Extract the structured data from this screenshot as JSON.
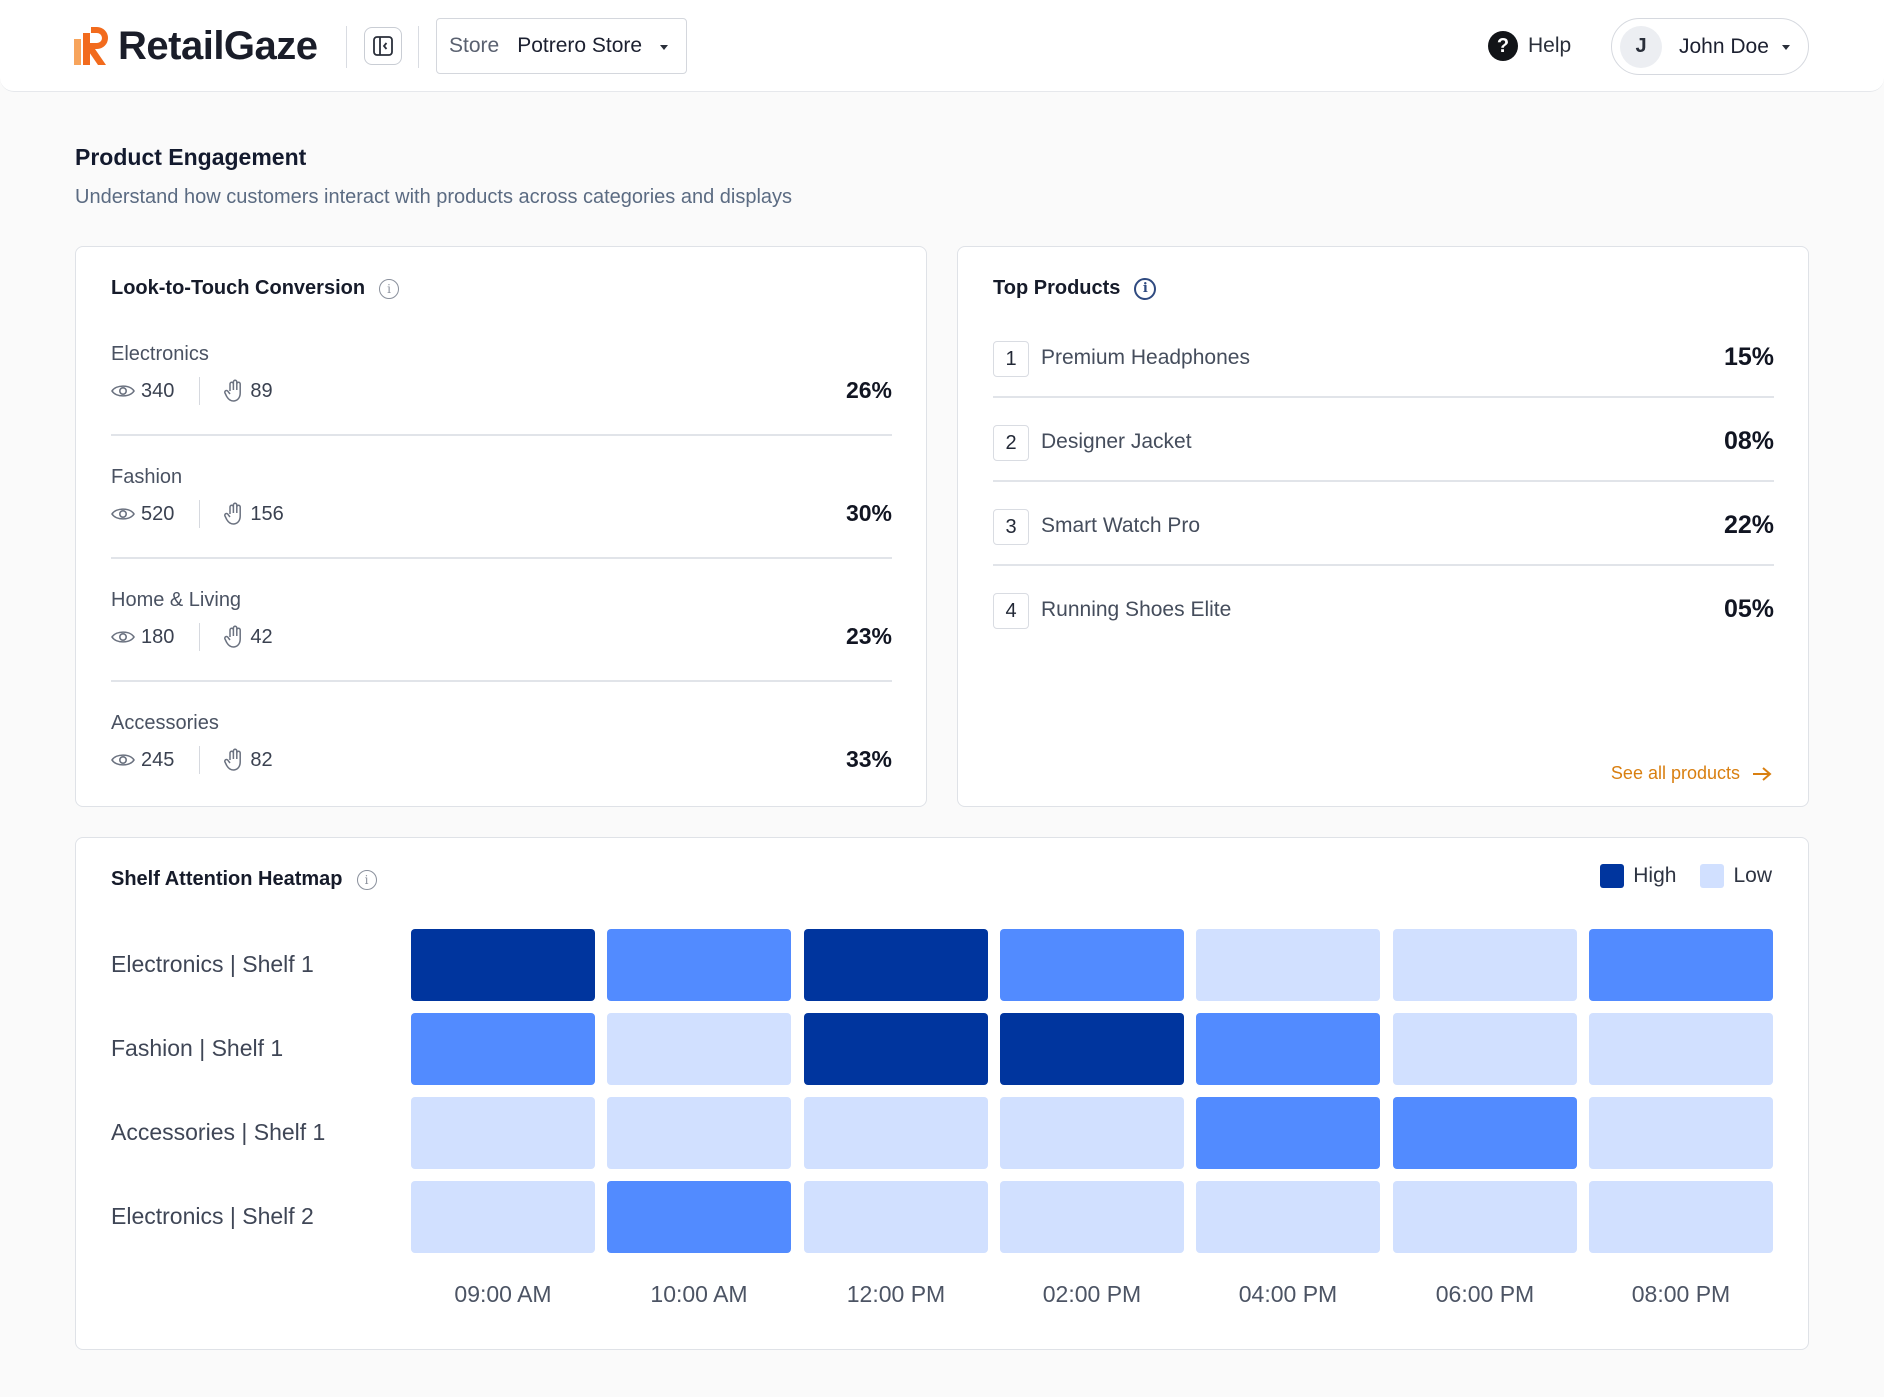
{
  "header": {
    "brand": "RetailGaze",
    "store_label": "Store",
    "store_value": "Potrero Store",
    "help_label": "Help",
    "user_initial": "J",
    "user_name": "John Doe"
  },
  "page": {
    "title": "Product Engagement",
    "subtitle": "Understand how customers interact with products across categories and displays"
  },
  "conversion": {
    "title": "Look-to-Touch Conversion",
    "rows": [
      {
        "name": "Electronics",
        "looks": "340",
        "touches": "89",
        "pct": "26%"
      },
      {
        "name": "Fashion",
        "looks": "520",
        "touches": "156",
        "pct": "30%"
      },
      {
        "name": "Home & Living",
        "looks": "180",
        "touches": "42",
        "pct": "23%"
      },
      {
        "name": "Accessories",
        "looks": "245",
        "touches": "82",
        "pct": "33%"
      }
    ]
  },
  "top_products": {
    "title": "Top Products",
    "items": [
      {
        "rank": "1",
        "name": "Premium Headphones",
        "pct": "15%"
      },
      {
        "rank": "2",
        "name": "Designer Jacket",
        "pct": "08%"
      },
      {
        "rank": "3",
        "name": "Smart Watch Pro",
        "pct": "22%"
      },
      {
        "rank": "4",
        "name": "Running Shoes Elite",
        "pct": "05%"
      }
    ],
    "see_all": "See all products"
  },
  "heatmap": {
    "title": "Shelf Attention Heatmap",
    "legend_high": "High",
    "legend_low": "Low",
    "colors": {
      "high": "#00359e",
      "medium": "#528bff",
      "low": "#d1e0ff"
    },
    "rows": [
      "Electronics | Shelf 1",
      "Fashion | Shelf 1",
      "Accessories | Shelf 1",
      "Electronics | Shelf 2"
    ],
    "columns": [
      "09:00 AM",
      "10:00 AM",
      "12:00 PM",
      "02:00 PM",
      "04:00 PM",
      "06:00 PM",
      "08:00 PM"
    ],
    "levels": [
      [
        "high",
        "medium",
        "high",
        "medium",
        "low",
        "low",
        "medium"
      ],
      [
        "medium",
        "low",
        "high",
        "high",
        "medium",
        "low",
        "low"
      ],
      [
        "low",
        "low",
        "low",
        "low",
        "medium",
        "medium",
        "low"
      ],
      [
        "low",
        "medium",
        "low",
        "low",
        "low",
        "low",
        "low"
      ]
    ]
  },
  "colors": {
    "accent": "#f26b1d",
    "link": "#d97f10"
  }
}
